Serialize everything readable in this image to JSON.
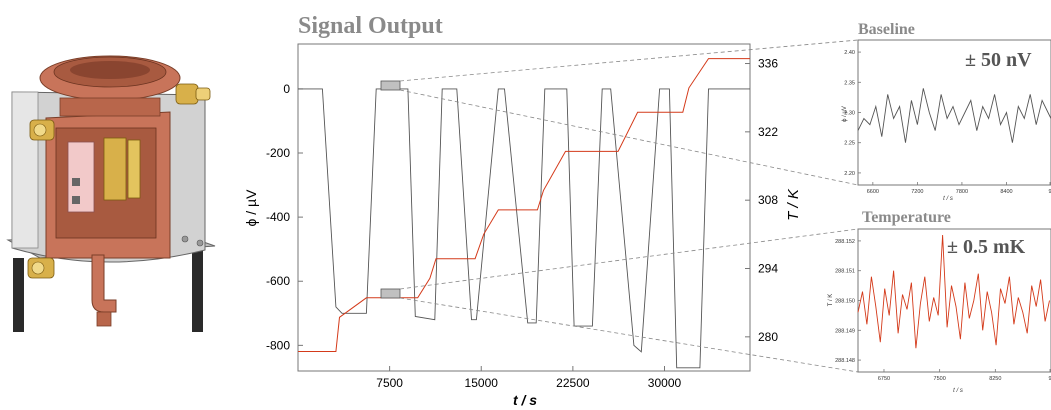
{
  "main_chart": {
    "title": "Signal Output",
    "ylabel_left": "ϕ / µV",
    "ylabel_right": "T / K",
    "xlabel": "t / s",
    "xticks": [
      "7500",
      "15000",
      "22500",
      "30000"
    ],
    "yticks_left": [
      "0",
      "-200",
      "-400",
      "-600",
      "-800"
    ],
    "yticks_right": [
      "336",
      "322",
      "308",
      "294",
      "280"
    ]
  },
  "baseline_panel": {
    "title": "Baseline",
    "annotation": "± 50 nV",
    "ylabel": "ϕ / µV",
    "xlabel": "t / s",
    "xticks": [
      "6600",
      "7200",
      "7800",
      "8400",
      "9"
    ],
    "yticks": [
      "2.40",
      "2.35",
      "2.30",
      "2.25",
      "2.20"
    ]
  },
  "temperature_panel": {
    "title": "Temperature",
    "annotation": "± 0.5 mK",
    "ylabel": "T / K",
    "xlabel": "t / s",
    "xticks": [
      "6750",
      "7500",
      "8250",
      "9"
    ],
    "yticks": [
      "288.152",
      "288.151",
      "288.150",
      "288.149",
      "288.148"
    ]
  },
  "colors": {
    "signal": "#555555",
    "temperature": "#d43a1a",
    "title_gray": "#8a8a8a",
    "apparatus_copper": "#c8745a",
    "apparatus_silver": "#c9c9c9",
    "apparatus_brass": "#d8b04a"
  },
  "chart_data": [
    {
      "type": "line",
      "x_range": [
        0,
        37000
      ],
      "y_left_range": [
        -880,
        140
      ],
      "y_right_range": [
        273,
        340
      ],
      "series": [
        {
          "axis": "left",
          "x": [
            0,
            2000,
            3100,
            3600,
            5600,
            6400,
            8000,
            9000,
            9600,
            11200,
            11800,
            13000,
            14200,
            14600,
            16400,
            16900,
            18800,
            19500,
            20200,
            22000,
            22600,
            24100,
            24900,
            25600,
            27500,
            28100,
            29600,
            30400,
            31000,
            32900,
            33600,
            37000
          ],
          "values": [
            0,
            0,
            -680,
            -700,
            -700,
            0,
            0,
            0,
            -710,
            -720,
            0,
            0,
            -720,
            -720,
            0,
            0,
            -730,
            -730,
            0,
            0,
            -740,
            -740,
            0,
            0,
            -800,
            -820,
            0,
            0,
            -870,
            -870,
            0,
            0
          ]
        },
        {
          "axis": "right",
          "x": [
            0,
            2000,
            3100,
            3400,
            5600,
            6200,
            9800,
            10800,
            11300,
            14500,
            15200,
            16400,
            17000,
            19600,
            20100,
            21900,
            22700,
            25500,
            26200,
            27800,
            28600,
            31500,
            32000,
            33600,
            34200,
            37000
          ],
          "values": [
            277,
            277,
            277,
            284,
            288,
            288,
            288,
            292,
            296,
            296,
            301,
            306,
            306,
            306,
            310,
            318,
            318,
            318,
            318,
            326,
            326,
            326,
            331,
            337,
            337,
            337
          ]
        }
      ],
      "xlabel": "t / s",
      "ylabel": "ϕ / µV",
      "ylabel_right": "T / K"
    },
    {
      "type": "line",
      "x_range": [
        6400,
        9000
      ],
      "ylim": [
        2.18,
        2.42
      ],
      "series": [
        {
          "x": [
            6400,
            6480,
            6560,
            6640,
            6720,
            6800,
            6880,
            6960,
            7040,
            7120,
            7200,
            7280,
            7360,
            7440,
            7520,
            7600,
            7680,
            7760,
            7840,
            7920,
            8000,
            8080,
            8160,
            8240,
            8320,
            8400,
            8480,
            8560,
            8640,
            8720,
            8800,
            8880,
            8960,
            9000
          ],
          "values": [
            2.27,
            2.29,
            2.28,
            2.31,
            2.26,
            2.33,
            2.29,
            2.31,
            2.25,
            2.32,
            2.28,
            2.34,
            2.3,
            2.27,
            2.33,
            2.29,
            2.31,
            2.28,
            2.3,
            2.32,
            2.27,
            2.31,
            2.29,
            2.33,
            2.28,
            2.3,
            2.25,
            2.31,
            2.29,
            2.33,
            2.28,
            2.32,
            2.3,
            2.29
          ]
        }
      ],
      "xlabel": "t / s",
      "ylabel": "ϕ / µV"
    },
    {
      "type": "line",
      "x_range": [
        6400,
        9000
      ],
      "ylim": [
        288.1476,
        288.1524
      ],
      "series": [
        {
          "x": [
            6400,
            6460,
            6520,
            6580,
            6640,
            6700,
            6760,
            6820,
            6880,
            6940,
            7000,
            7060,
            7120,
            7180,
            7240,
            7300,
            7360,
            7420,
            7480,
            7540,
            7600,
            7660,
            7720,
            7780,
            7840,
            7900,
            7960,
            8020,
            8080,
            8140,
            8200,
            8260,
            8320,
            8380,
            8440,
            8500,
            8560,
            8620,
            8680,
            8740,
            8800,
            8860,
            8920,
            8980
          ],
          "values": [
            288.1496,
            288.1503,
            288.1492,
            288.1508,
            288.1498,
            288.1486,
            288.1504,
            288.1495,
            288.151,
            288.1489,
            288.1502,
            288.1497,
            288.1506,
            288.1484,
            288.1499,
            288.1508,
            288.1493,
            288.1501,
            288.1495,
            288.1522,
            288.1491,
            288.1505,
            288.1498,
            288.1487,
            288.1506,
            288.1494,
            288.15,
            288.1509,
            288.149,
            288.1503,
            288.1496,
            288.1485,
            288.1504,
            288.1499,
            288.1508,
            288.1492,
            288.1501,
            288.1496,
            288.1489,
            288.1505,
            288.1498,
            288.1507,
            288.1493,
            288.15
          ]
        }
      ],
      "xlabel": "t / s",
      "ylabel": "T / K"
    }
  ]
}
